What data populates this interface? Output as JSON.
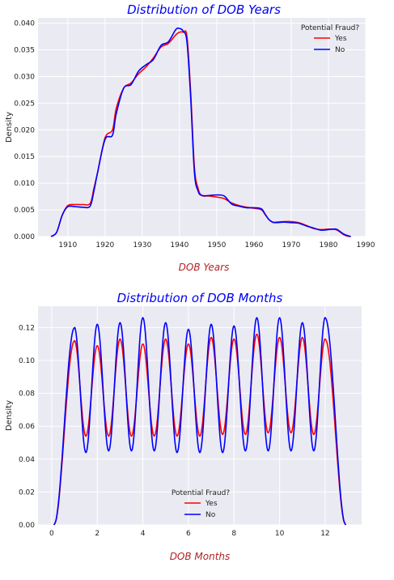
{
  "chart_data": [
    {
      "type": "line",
      "title": "Distribution of DOB Years",
      "xlabel": "DOB Years",
      "ylabel": "Density",
      "xlim": [
        1902,
        1990
      ],
      "ylim": [
        0,
        0.041
      ],
      "xticks": [
        "1910",
        "1920",
        "1930",
        "1940",
        "1950",
        "1960",
        "1970",
        "1980",
        "1990"
      ],
      "yticks": [
        "0.000",
        "0.005",
        "0.010",
        "0.015",
        "0.020",
        "0.025",
        "0.030",
        "0.035",
        "0.040"
      ],
      "grid": true,
      "legend": {
        "title": "Potential Fraud?",
        "position": "top-right"
      },
      "series": [
        {
          "name": "Yes",
          "color": "#ff0000",
          "x": [
            1905.5,
            1907,
            1908.5,
            1910,
            1912,
            1914,
            1916,
            1917,
            1918,
            1920,
            1922,
            1923,
            1925,
            1927,
            1929,
            1931,
            1933,
            1935,
            1937,
            1939,
            1940,
            1941,
            1942,
            1943,
            1944,
            1945,
            1946,
            1948,
            1950,
            1952,
            1954,
            1956,
            1958,
            1960,
            1962,
            1963,
            1964,
            1965,
            1966,
            1968,
            1970,
            1972,
            1974,
            1976,
            1978,
            1980,
            1982,
            1983,
            1984,
            1985,
            1986
          ],
          "y": [
            0.0,
            0.0008,
            0.004,
            0.0058,
            0.006,
            0.006,
            0.0062,
            0.009,
            0.012,
            0.0185,
            0.02,
            0.024,
            0.0278,
            0.0288,
            0.0305,
            0.0318,
            0.0335,
            0.0355,
            0.0362,
            0.0378,
            0.0383,
            0.0383,
            0.0375,
            0.027,
            0.013,
            0.009,
            0.0077,
            0.0076,
            0.0074,
            0.0071,
            0.0063,
            0.0058,
            0.0055,
            0.0053,
            0.005,
            0.0041,
            0.0032,
            0.0027,
            0.0027,
            0.0028,
            0.0028,
            0.0026,
            0.0021,
            0.0015,
            0.0013,
            0.0014,
            0.0013,
            0.0009,
            0.0004,
            0.0001,
            0.0
          ]
        },
        {
          "name": "No",
          "color": "#0000ff",
          "x": [
            1905.5,
            1907,
            1908.5,
            1910,
            1912,
            1914,
            1916,
            1917,
            1918,
            1920,
            1922,
            1923,
            1925,
            1927,
            1929,
            1931,
            1933,
            1935,
            1937,
            1939,
            1940,
            1941,
            1942,
            1943,
            1944,
            1945,
            1946,
            1948,
            1950,
            1952,
            1954,
            1956,
            1958,
            1960,
            1962,
            1963,
            1964,
            1965,
            1966,
            1968,
            1970,
            1972,
            1974,
            1976,
            1978,
            1980,
            1982,
            1983,
            1984,
            1985,
            1986
          ],
          "y": [
            0.0,
            0.0008,
            0.004,
            0.0056,
            0.0056,
            0.0055,
            0.0057,
            0.0085,
            0.012,
            0.0182,
            0.019,
            0.023,
            0.0278,
            0.0285,
            0.031,
            0.0322,
            0.0332,
            0.0358,
            0.0365,
            0.0388,
            0.039,
            0.0385,
            0.0365,
            0.026,
            0.012,
            0.0085,
            0.0077,
            0.0077,
            0.0078,
            0.0076,
            0.0061,
            0.0057,
            0.0054,
            0.0054,
            0.0052,
            0.0042,
            0.0032,
            0.0027,
            0.0026,
            0.0027,
            0.0026,
            0.0025,
            0.002,
            0.0016,
            0.0012,
            0.0013,
            0.0014,
            0.001,
            0.0005,
            0.0002,
            0.0
          ]
        }
      ]
    },
    {
      "type": "line",
      "title": "Distribution of DOB Months",
      "xlabel": "DOB Months",
      "ylabel": "Density",
      "xlim": [
        -0.6,
        13.6
      ],
      "ylim": [
        0,
        0.133
      ],
      "xticks": [
        "0",
        "2",
        "4",
        "6",
        "8",
        "10",
        "12"
      ],
      "yticks": [
        "0.00",
        "0.02",
        "0.04",
        "0.06",
        "0.08",
        "0.10",
        "0.12"
      ],
      "grid": true,
      "legend": {
        "title": "Potential Fraud?",
        "position": "lower-center"
      },
      "series": [
        {
          "name": "Yes",
          "color": "#ff0000",
          "peak_months": [
            1,
            2,
            3,
            4,
            5,
            6,
            7,
            8,
            9,
            10,
            11,
            12
          ],
          "peaks": [
            0.112,
            0.109,
            0.113,
            0.11,
            0.113,
            0.11,
            0.114,
            0.113,
            0.116,
            0.114,
            0.114,
            0.113
          ],
          "troughs": [
            0.054,
            0.054,
            0.054,
            0.054,
            0.054,
            0.054,
            0.055,
            0.055,
            0.056,
            0.056,
            0.055
          ],
          "start": 0.0,
          "end": 0.0,
          "x_start": 0.1,
          "x_end": 12.9
        },
        {
          "name": "No",
          "color": "#0000ff",
          "peak_months": [
            1,
            2,
            3,
            4,
            5,
            6,
            7,
            8,
            9,
            10,
            11,
            12
          ],
          "peaks": [
            0.12,
            0.122,
            0.123,
            0.126,
            0.123,
            0.119,
            0.122,
            0.121,
            0.126,
            0.126,
            0.123,
            0.126
          ],
          "troughs": [
            0.044,
            0.045,
            0.045,
            0.045,
            0.044,
            0.044,
            0.044,
            0.045,
            0.045,
            0.045,
            0.045
          ],
          "start": 0.0,
          "end": 0.0,
          "x_start": 0.1,
          "x_end": 12.9
        }
      ]
    }
  ]
}
